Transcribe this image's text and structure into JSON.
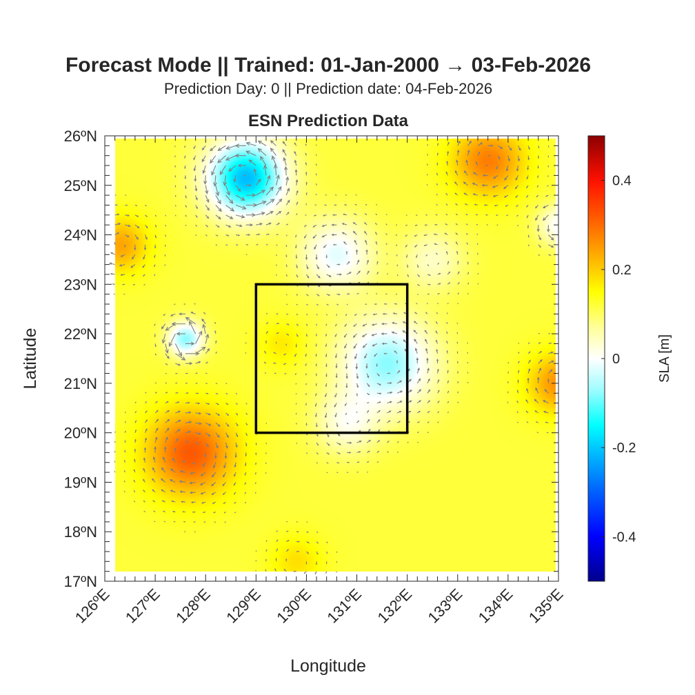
{
  "chart_data": {
    "type": "heatmap",
    "title": "Forecast Mode || Trained: 01-Jan-2000 → 03-Feb-2026",
    "subtitle": "Prediction Day: 0 || Prediction date: 04-Feb-2026",
    "axes_title": "ESN Prediction Data",
    "xlabel": "Longitude",
    "ylabel": "Latitude",
    "xlim": [
      126,
      135
    ],
    "ylim": [
      17,
      26
    ],
    "data_extent": {
      "lon": [
        126.2,
        134.95
      ],
      "lat": [
        17.2,
        25.95
      ]
    },
    "xticks": [
      126,
      127,
      128,
      129,
      130,
      131,
      132,
      133,
      134,
      135
    ],
    "xtick_labels": [
      "126ºE",
      "127ºE",
      "128ºE",
      "129ºE",
      "130ºE",
      "131ºE",
      "132ºE",
      "133ºE",
      "134ºE",
      "135ºE"
    ],
    "yticks": [
      17,
      18,
      19,
      20,
      21,
      22,
      23,
      24,
      25,
      26
    ],
    "ytick_labels": [
      "17ºN",
      "18ºN",
      "19ºN",
      "20ºN",
      "21ºN",
      "22ºN",
      "23ºN",
      "24ºN",
      "25ºN",
      "26ºN"
    ],
    "colorbar": {
      "label": "SLA [m]",
      "limits": [
        -0.5,
        0.5
      ],
      "ticks": [
        0.4,
        0.2,
        0,
        -0.2,
        -0.4
      ],
      "tick_labels": [
        "0.4",
        "0.2",
        "0",
        "-0.2",
        "-0.4"
      ],
      "colormap": [
        [
          -0.5,
          "#00008c"
        ],
        [
          -0.4,
          "#0000ff"
        ],
        [
          -0.3,
          "#0060ff"
        ],
        [
          -0.2,
          "#00c8ff"
        ],
        [
          -0.15,
          "#00ffff"
        ],
        [
          -0.07,
          "#9ffcff"
        ],
        [
          0,
          "#ffffff"
        ],
        [
          0.07,
          "#ffff9a"
        ],
        [
          0.15,
          "#ffff00"
        ],
        [
          0.2,
          "#ffcc00"
        ],
        [
          0.3,
          "#ff6a00"
        ],
        [
          0.4,
          "#ff1000"
        ],
        [
          0.5,
          "#8c0000"
        ]
      ]
    },
    "sla_background": 0.12,
    "sla_features": [
      {
        "lon": 128.8,
        "lat": 25.15,
        "amp": -0.33,
        "r": 0.75
      },
      {
        "lon": 133.6,
        "lat": 25.5,
        "amp": 0.16,
        "r": 0.7
      },
      {
        "lon": 126.3,
        "lat": 23.8,
        "amp": 0.12,
        "r": 0.55
      },
      {
        "lon": 127.6,
        "lat": 21.9,
        "amp": -0.2,
        "r": 0.35
      },
      {
        "lon": 127.7,
        "lat": 19.6,
        "amp": 0.2,
        "r": 0.85
      },
      {
        "lon": 135.0,
        "lat": 21.0,
        "amp": 0.14,
        "r": 0.6
      },
      {
        "lon": 129.5,
        "lat": 21.8,
        "amp": 0.05,
        "r": 0.45
      },
      {
        "lon": 131.6,
        "lat": 21.4,
        "amp": -0.2,
        "r": 0.9
      },
      {
        "lon": 130.8,
        "lat": 20.2,
        "amp": -0.1,
        "r": 0.6
      },
      {
        "lon": 130.6,
        "lat": 23.6,
        "amp": -0.14,
        "r": 0.7
      },
      {
        "lon": 132.5,
        "lat": 23.5,
        "amp": -0.08,
        "r": 0.6
      },
      {
        "lon": 129.8,
        "lat": 17.4,
        "amp": 0.06,
        "r": 0.5
      },
      {
        "lon": 135.0,
        "lat": 24.2,
        "amp": -0.12,
        "r": 0.4
      }
    ],
    "quiver": {
      "spacing_deg": 0.2,
      "color": "#7f7f7f"
    },
    "region_box": {
      "lon": [
        129,
        132
      ],
      "lat": [
        20,
        23
      ],
      "color": "#000000"
    }
  }
}
